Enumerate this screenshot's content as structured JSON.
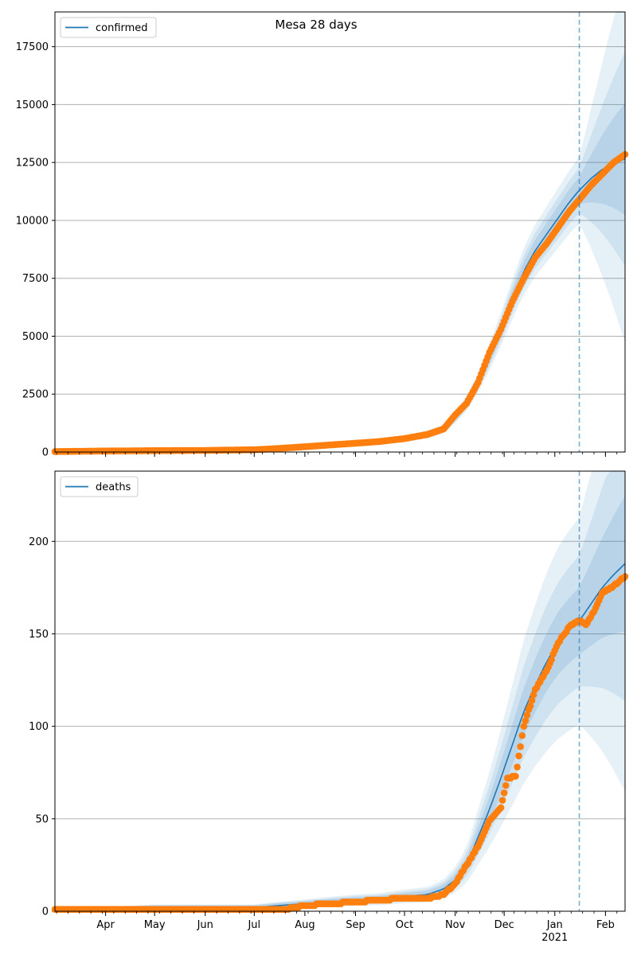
{
  "title": "Mesa 28 days",
  "colors": {
    "model_line": "#1f77b4",
    "observed": "#ff7f0e",
    "band": "#1f77b4",
    "grid": "#b0b0b0",
    "cutoff": "#1f77b4"
  },
  "x_axis": {
    "start": "2020-03-01",
    "end": "2021-02-13",
    "cutoff": "2021-01-16",
    "major_ticks": [
      {
        "date": "2020-04-01",
        "label": "Apr"
      },
      {
        "date": "2020-05-01",
        "label": "May"
      },
      {
        "date": "2020-06-01",
        "label": "Jun"
      },
      {
        "date": "2020-07-01",
        "label": "Jul"
      },
      {
        "date": "2020-08-01",
        "label": "Aug"
      },
      {
        "date": "2020-09-01",
        "label": "Sep"
      },
      {
        "date": "2020-10-01",
        "label": "Oct"
      },
      {
        "date": "2020-11-01",
        "label": "Nov"
      },
      {
        "date": "2020-12-01",
        "label": "Dec"
      },
      {
        "date": "2021-01-01",
        "label": "Jan"
      },
      {
        "date": "2021-02-01",
        "label": "Feb"
      }
    ],
    "year_label": {
      "date": "2021-01-01",
      "label": "2021"
    }
  },
  "chart_data": [
    {
      "type": "line",
      "legend": "confirmed",
      "legend_position": "top-left",
      "grid": "horizontal",
      "ylim": [
        0,
        19000
      ],
      "yticks": [
        0,
        2500,
        5000,
        7500,
        10000,
        12500,
        15000,
        17500
      ],
      "model": [
        [
          "2020-03-01",
          20
        ],
        [
          "2020-04-01",
          50
        ],
        [
          "2020-05-01",
          70
        ],
        [
          "2020-06-01",
          80
        ],
        [
          "2020-07-01",
          100
        ],
        [
          "2020-07-15",
          150
        ],
        [
          "2020-08-01",
          240
        ],
        [
          "2020-08-15",
          300
        ],
        [
          "2020-09-01",
          370
        ],
        [
          "2020-09-15",
          440
        ],
        [
          "2020-10-01",
          580
        ],
        [
          "2020-10-15",
          760
        ],
        [
          "2020-10-25",
          1000
        ],
        [
          "2020-11-01",
          1500
        ],
        [
          "2020-11-08",
          2100
        ],
        [
          "2020-11-15",
          3000
        ],
        [
          "2020-11-22",
          4100
        ],
        [
          "2020-11-29",
          5300
        ],
        [
          "2020-12-06",
          6600
        ],
        [
          "2020-12-13",
          7800
        ],
        [
          "2020-12-20",
          8700
        ],
        [
          "2020-12-27",
          9400
        ],
        [
          "2021-01-03",
          10100
        ],
        [
          "2021-01-10",
          10800
        ],
        [
          "2021-01-16",
          11300
        ],
        [
          "2021-01-23",
          11800
        ],
        [
          "2021-01-30",
          12200
        ],
        [
          "2021-02-06",
          12500
        ],
        [
          "2021-02-13",
          12650
        ]
      ],
      "bands": [
        {
          "opacity": 0.11,
          "rel": 0.12,
          "extra": 0.5
        },
        {
          "opacity": 0.11,
          "rel": 0.08,
          "extra": 0.28
        },
        {
          "opacity": 0.13,
          "rel": 0.045,
          "extra": 0.14
        }
      ],
      "observed": [
        [
          "2020-03-01",
          20
        ],
        [
          "2020-04-01",
          45
        ],
        [
          "2020-05-01",
          60
        ],
        [
          "2020-06-01",
          70
        ],
        [
          "2020-07-01",
          100
        ],
        [
          "2020-07-15",
          150
        ],
        [
          "2020-08-01",
          230
        ],
        [
          "2020-08-15",
          300
        ],
        [
          "2020-09-01",
          380
        ],
        [
          "2020-09-15",
          450
        ],
        [
          "2020-10-01",
          580
        ],
        [
          "2020-10-15",
          760
        ],
        [
          "2020-10-25",
          1000
        ],
        [
          "2020-11-01",
          1600
        ],
        [
          "2020-11-08",
          2100
        ],
        [
          "2020-11-15",
          3000
        ],
        [
          "2020-11-22",
          4300
        ],
        [
          "2020-11-29",
          5300
        ],
        [
          "2020-12-06",
          6500
        ],
        [
          "2020-12-13",
          7500
        ],
        [
          "2020-12-20",
          8400
        ],
        [
          "2020-12-27",
          9000
        ],
        [
          "2021-01-03",
          9700
        ],
        [
          "2021-01-10",
          10400
        ],
        [
          "2021-01-16",
          10900
        ],
        [
          "2021-01-23",
          11500
        ],
        [
          "2021-01-30",
          12000
        ],
        [
          "2021-02-06",
          12500
        ],
        [
          "2021-02-13",
          12850
        ]
      ]
    },
    {
      "type": "line",
      "legend": "deaths",
      "legend_position": "top-left",
      "grid": "horizontal",
      "ylim": [
        0,
        238
      ],
      "yticks": [
        0,
        50,
        100,
        150,
        200
      ],
      "model": [
        [
          "2020-03-01",
          1
        ],
        [
          "2020-04-01",
          1
        ],
        [
          "2020-05-01",
          2
        ],
        [
          "2020-06-01",
          2
        ],
        [
          "2020-07-01",
          2
        ],
        [
          "2020-07-15",
          3
        ],
        [
          "2020-08-01",
          4
        ],
        [
          "2020-08-15",
          5
        ],
        [
          "2020-09-01",
          6
        ],
        [
          "2020-09-15",
          6.5
        ],
        [
          "2020-10-01",
          8
        ],
        [
          "2020-10-15",
          9
        ],
        [
          "2020-10-25",
          12
        ],
        [
          "2020-11-01",
          17
        ],
        [
          "2020-11-08",
          25
        ],
        [
          "2020-11-15",
          40
        ],
        [
          "2020-11-22",
          55
        ],
        [
          "2020-11-29",
          72
        ],
        [
          "2020-12-06",
          90
        ],
        [
          "2020-12-13",
          108
        ],
        [
          "2020-12-20",
          122
        ],
        [
          "2020-12-27",
          135
        ],
        [
          "2021-01-03",
          145
        ],
        [
          "2021-01-10",
          152
        ],
        [
          "2021-01-16",
          157
        ],
        [
          "2021-01-23",
          166
        ],
        [
          "2021-01-30",
          175
        ],
        [
          "2021-02-06",
          182
        ],
        [
          "2021-02-13",
          188
        ]
      ],
      "bands": [
        {
          "opacity": 0.11,
          "rel": 0.35,
          "extra": 0.3
        },
        {
          "opacity": 0.11,
          "rel": 0.22,
          "extra": 0.17
        },
        {
          "opacity": 0.13,
          "rel": 0.11,
          "extra": 0.08
        }
      ],
      "observed": [
        [
          "2020-03-01",
          1
        ],
        [
          "2020-04-01",
          1
        ],
        [
          "2020-05-01",
          1
        ],
        [
          "2020-06-01",
          1
        ],
        [
          "2020-07-01",
          1
        ],
        [
          "2020-07-20",
          1
        ],
        [
          "2020-08-01",
          3
        ],
        [
          "2020-08-15",
          4
        ],
        [
          "2020-09-01",
          5
        ],
        [
          "2020-09-15",
          6
        ],
        [
          "2020-10-01",
          7
        ],
        [
          "2020-10-15",
          7
        ],
        [
          "2020-10-25",
          9
        ],
        [
          "2020-11-01",
          15
        ],
        [
          "2020-11-08",
          25
        ],
        [
          "2020-11-15",
          35
        ],
        [
          "2020-11-22",
          49
        ],
        [
          "2020-11-29",
          56
        ],
        [
          "2020-12-03",
          72
        ],
        [
          "2020-12-08",
          73
        ],
        [
          "2020-12-13",
          100
        ],
        [
          "2020-12-20",
          120
        ],
        [
          "2020-12-27",
          130
        ],
        [
          "2021-01-03",
          145
        ],
        [
          "2021-01-10",
          154
        ],
        [
          "2021-01-16",
          157
        ],
        [
          "2021-01-20",
          155
        ],
        [
          "2021-01-25",
          162
        ],
        [
          "2021-01-30",
          172
        ],
        [
          "2021-02-06",
          176
        ],
        [
          "2021-02-13",
          181
        ]
      ]
    }
  ]
}
